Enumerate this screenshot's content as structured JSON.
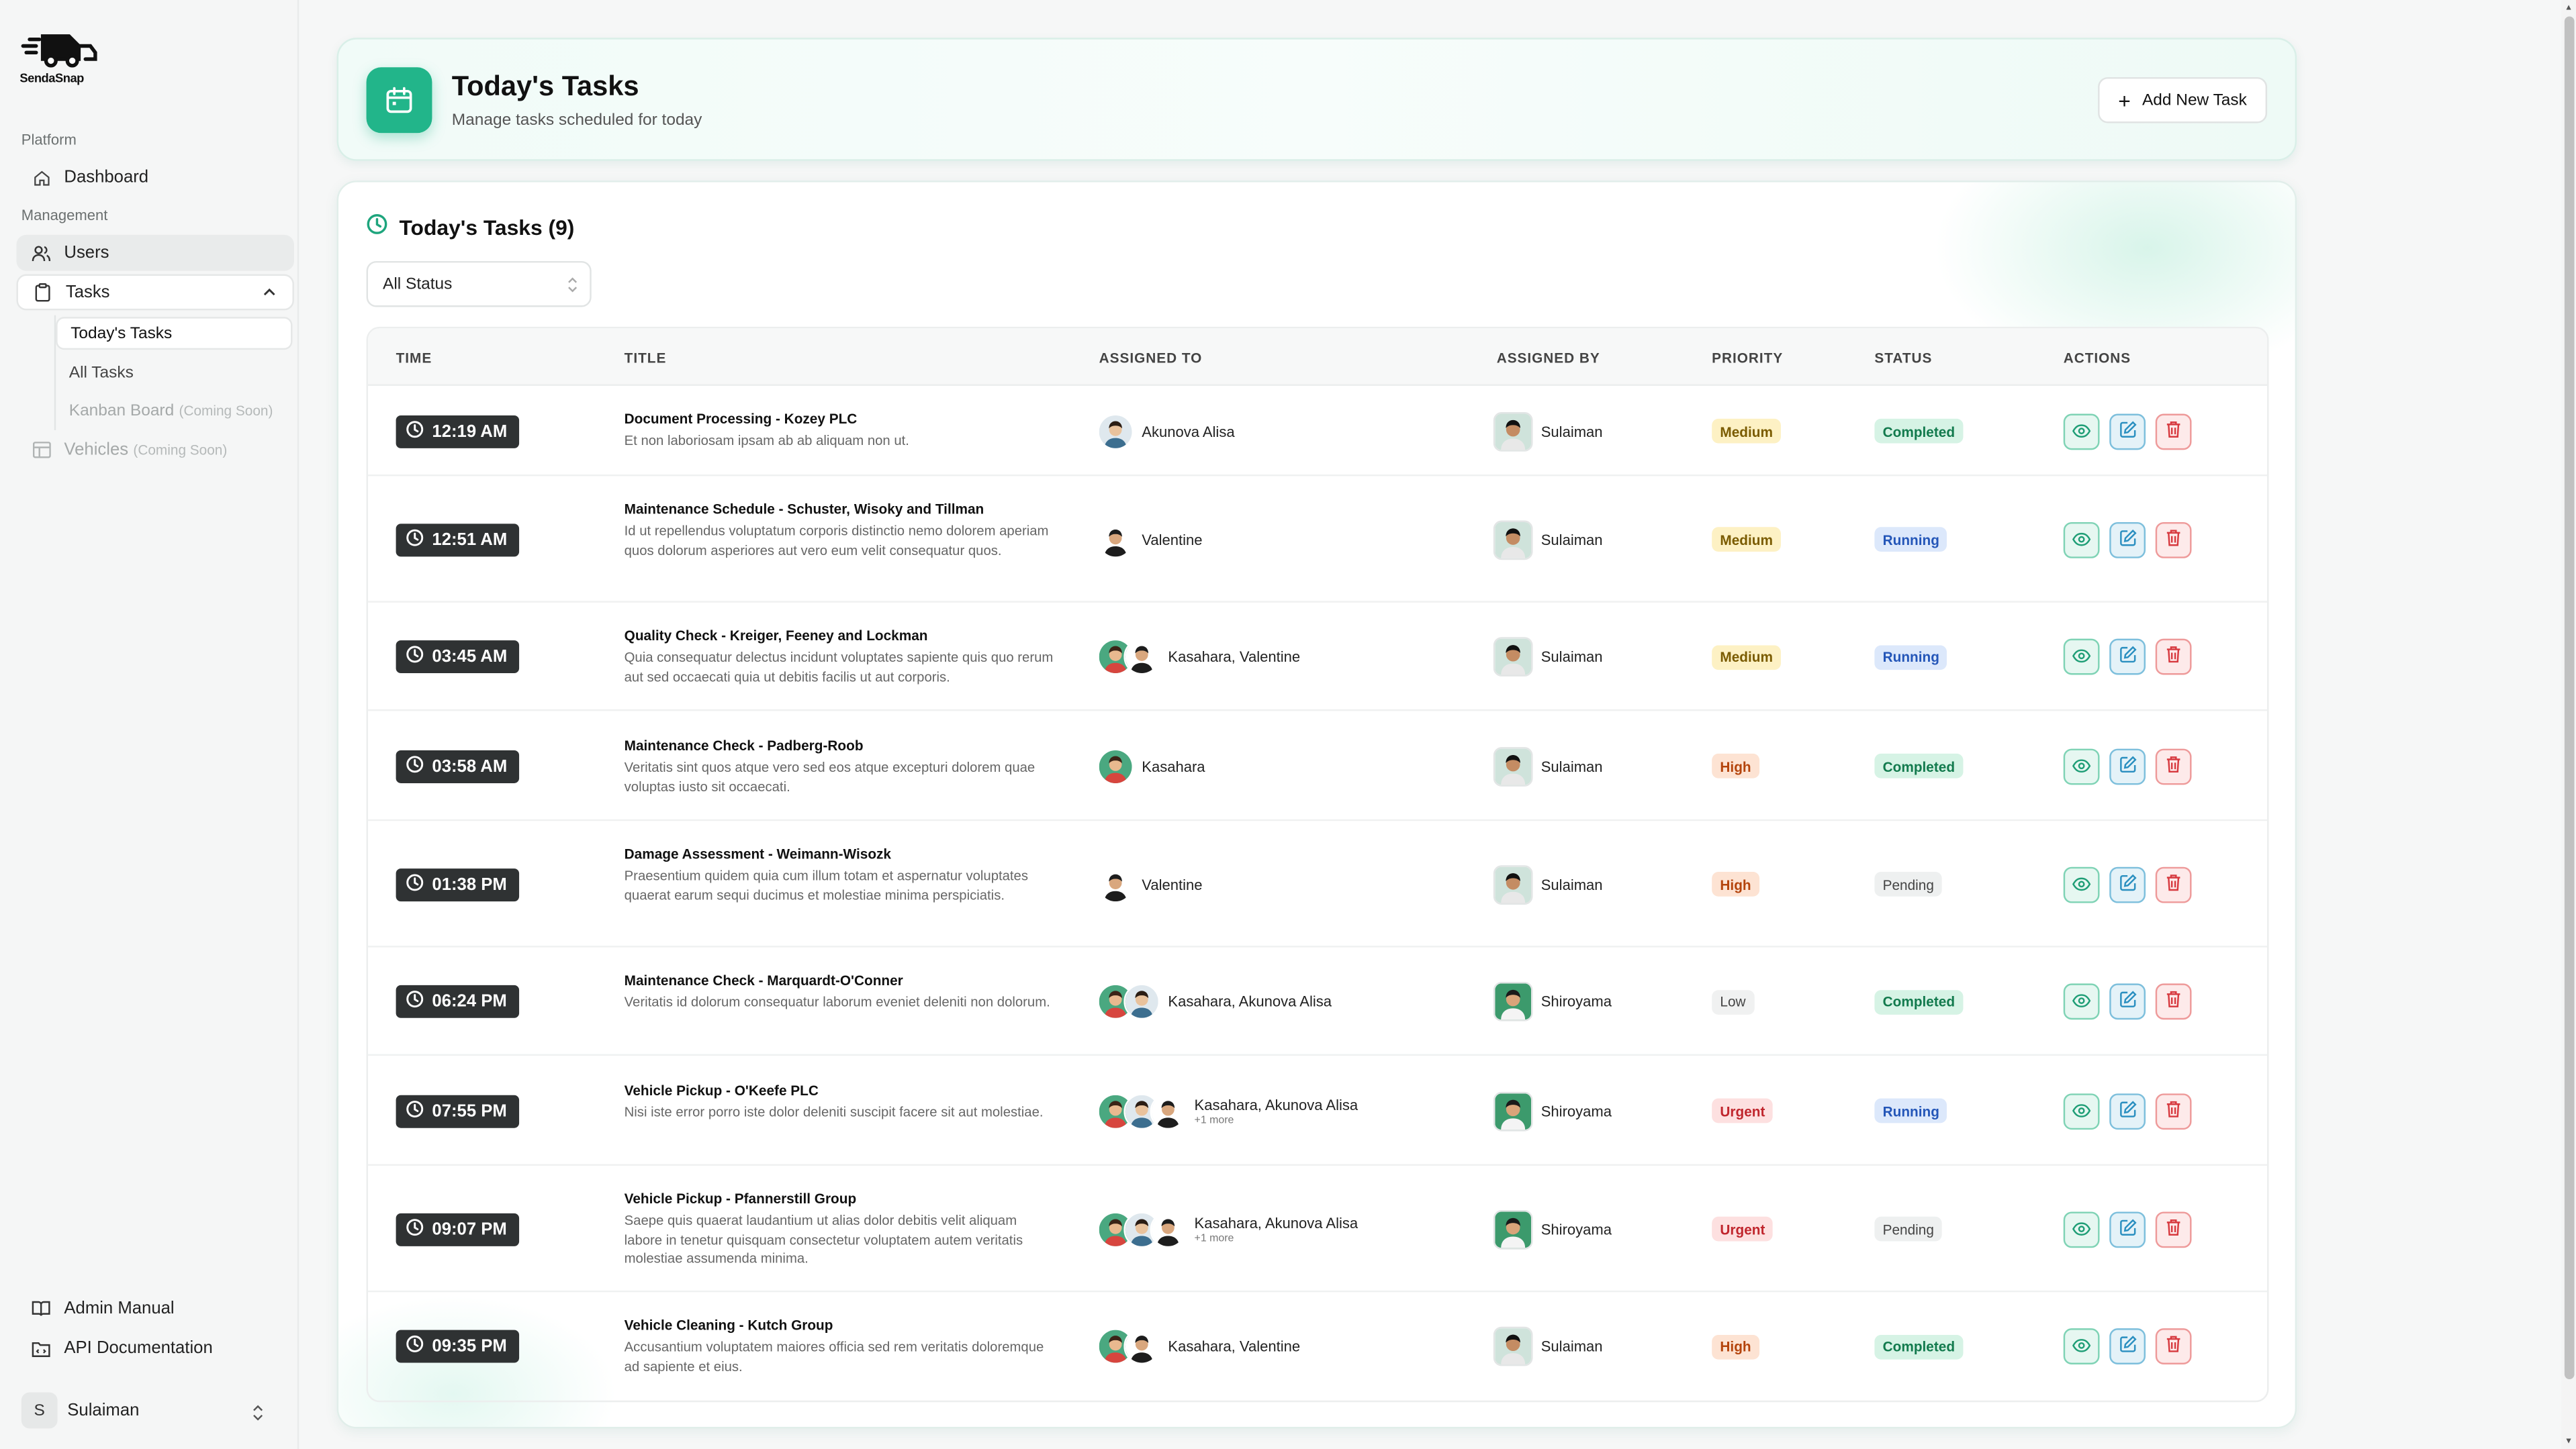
{
  "brand": {
    "name": "SendaSnap"
  },
  "sidebar": {
    "platform_label": "Platform",
    "dashboard": "Dashboard",
    "management_label": "Management",
    "users": "Users",
    "tasks": "Tasks",
    "sub": {
      "todays": "Today's Tasks",
      "all": "All Tasks",
      "kanban": "Kanban Board",
      "kanban_soon": "(Coming Soon)"
    },
    "vehicles": "Vehicles",
    "vehicles_soon": "(Coming Soon)",
    "admin_manual": "Admin Manual",
    "api_docs": "API Documentation",
    "user": {
      "initial": "S",
      "name": "Sulaiman"
    }
  },
  "header": {
    "title": "Today's Tasks",
    "subtitle": "Manage tasks scheduled for today",
    "add_button": "Add New Task"
  },
  "list": {
    "title": "Today's Tasks (9)",
    "filter": "All Status",
    "columns": [
      "TIME",
      "TITLE",
      "ASSIGNED TO",
      "ASSIGNED BY",
      "PRIORITY",
      "STATUS",
      "ACTIONS"
    ]
  },
  "tasks": [
    {
      "time": "12:19 AM",
      "title": "Document Processing - Kozey PLC",
      "desc": "Et non laboriosam ipsam ab ab aliquam non ut.",
      "assignees": "Akunova Alisa",
      "more": "",
      "assigned_by": "Sulaiman",
      "priority": "Medium",
      "status": "Completed"
    },
    {
      "time": "12:51 AM",
      "title": "Maintenance Schedule - Schuster, Wisoky and Tillman",
      "desc": "Id ut repellendus voluptatum corporis distinctio nemo dolorem aperiam quos dolorum asperiores aut vero eum velit consequatur quos.",
      "assignees": "Valentine",
      "more": "",
      "assigned_by": "Sulaiman",
      "priority": "Medium",
      "status": "Running"
    },
    {
      "time": "03:45 AM",
      "title": "Quality Check - Kreiger, Feeney and Lockman",
      "desc": "Quia consequatur delectus incidunt voluptates sapiente quis quo rerum aut sed occaecati quia ut debitis facilis ut aut corporis.",
      "assignees": "Kasahara, Valentine",
      "more": "",
      "assigned_by": "Sulaiman",
      "priority": "Medium",
      "status": "Running"
    },
    {
      "time": "03:58 AM",
      "title": "Maintenance Check - Padberg-Roob",
      "desc": "Veritatis sint quos atque vero sed eos atque excepturi dolorem quae voluptas iusto sit occaecati.",
      "assignees": "Kasahara",
      "more": "",
      "assigned_by": "Sulaiman",
      "priority": "High",
      "status": "Completed"
    },
    {
      "time": "01:38 PM",
      "title": "Damage Assessment - Weimann-Wisozk",
      "desc": "Praesentium quidem quia cum illum totam et aspernatur voluptates quaerat earum sequi ducimus et molestiae minima perspiciatis.",
      "assignees": "Valentine",
      "more": "",
      "assigned_by": "Sulaiman",
      "priority": "High",
      "status": "Pending"
    },
    {
      "time": "06:24 PM",
      "title": "Maintenance Check - Marquardt-O'Conner",
      "desc": "Veritatis id dolorum consequatur laborum eveniet deleniti non dolorum.",
      "assignees": "Kasahara, Akunova Alisa",
      "more": "",
      "assigned_by": "Shiroyama",
      "priority": "Low",
      "status": "Completed"
    },
    {
      "time": "07:55 PM",
      "title": "Vehicle Pickup - O'Keefe PLC",
      "desc": "Nisi iste error porro iste dolor deleniti suscipit facere sit aut molestiae.",
      "assignees": "Kasahara, Akunova Alisa",
      "more": "+1 more",
      "assigned_by": "Shiroyama",
      "priority": "Urgent",
      "status": "Running"
    },
    {
      "time": "09:07 PM",
      "title": "Vehicle Pickup - Pfannerstill Group",
      "desc": "Saepe quis quaerat laudantium ut alias dolor debitis velit aliquam labore in tenetur quisquam consectetur voluptatem autem veritatis molestiae assumenda minima.",
      "assignees": "Kasahara, Akunova Alisa",
      "more": "+1 more",
      "assigned_by": "Shiroyama",
      "priority": "Urgent",
      "status": "Pending"
    },
    {
      "time": "09:35 PM",
      "title": "Vehicle Cleaning - Kutch Group",
      "desc": "Accusantium voluptatem maiores officia sed rem veritatis doloremque ad sapiente et eius.",
      "assignees": "Kasahara, Valentine",
      "more": "",
      "assigned_by": "Sulaiman",
      "priority": "High",
      "status": "Completed"
    }
  ],
  "colors": {
    "accent": "#22b58a",
    "time_pill": "#2f3233"
  }
}
